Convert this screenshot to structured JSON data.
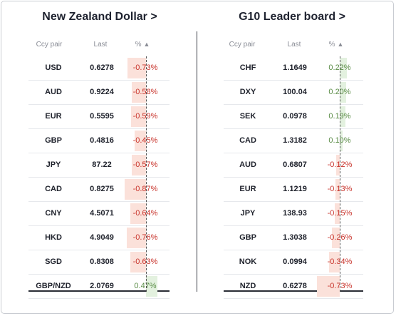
{
  "left": {
    "title": "New Zealand Dollar >",
    "headers": {
      "pair": "Ccy pair",
      "last": "Last",
      "pct": "%"
    },
    "rows": [
      {
        "pair": "USD",
        "last": "0.6278",
        "pct": "-0.73%",
        "value": -0.73
      },
      {
        "pair": "AUD",
        "last": "0.9224",
        "pct": "-0.58%",
        "value": -0.58
      },
      {
        "pair": "EUR",
        "last": "0.5595",
        "pct": "-0.59%",
        "value": -0.59
      },
      {
        "pair": "GBP",
        "last": "0.4816",
        "pct": "-0.45%",
        "value": -0.45
      },
      {
        "pair": "JPY",
        "last": "87.22",
        "pct": "-0.57%",
        "value": -0.57
      },
      {
        "pair": "CAD",
        "last": "0.8275",
        "pct": "-0.87%",
        "value": -0.87
      },
      {
        "pair": "CNY",
        "last": "4.5071",
        "pct": "-0.64%",
        "value": -0.64
      },
      {
        "pair": "HKD",
        "last": "4.9049",
        "pct": "-0.76%",
        "value": -0.76
      },
      {
        "pair": "SGD",
        "last": "0.8308",
        "pct": "-0.63%",
        "value": -0.63
      },
      {
        "pair": "GBP/NZD",
        "last": "2.0769",
        "pct": "0.47%",
        "value": 0.47
      }
    ]
  },
  "right": {
    "title": "G10 Leader board >",
    "headers": {
      "pair": "Ccy pair",
      "last": "Last",
      "pct": "%"
    },
    "rows": [
      {
        "pair": "CHF",
        "last": "1.1649",
        "pct": "0.22%",
        "value": 0.22
      },
      {
        "pair": "DXY",
        "last": "100.04",
        "pct": "0.20%",
        "value": 0.2
      },
      {
        "pair": "SEK",
        "last": "0.0978",
        "pct": "0.19%",
        "value": 0.19
      },
      {
        "pair": "CAD",
        "last": "1.3182",
        "pct": "0.10%",
        "value": 0.1
      },
      {
        "pair": "AUD",
        "last": "0.6807",
        "pct": "-0.12%",
        "value": -0.12
      },
      {
        "pair": "EUR",
        "last": "1.1219",
        "pct": "-0.13%",
        "value": -0.13
      },
      {
        "pair": "JPY",
        "last": "138.93",
        "pct": "-0.15%",
        "value": -0.15
      },
      {
        "pair": "GBP",
        "last": "1.3038",
        "pct": "-0.26%",
        "value": -0.26
      },
      {
        "pair": "NOK",
        "last": "0.0994",
        "pct": "-0.34%",
        "value": -0.34
      },
      {
        "pair": "NZD",
        "last": "0.6278",
        "pct": "-0.73%",
        "value": -0.73
      }
    ]
  },
  "icons": {
    "sort": "sort-ascending-icon"
  },
  "colors": {
    "negative": "#c8322a",
    "positive": "#5a8c46",
    "neg_bar": "#fbe1da",
    "pos_bar": "#e3f1df"
  }
}
